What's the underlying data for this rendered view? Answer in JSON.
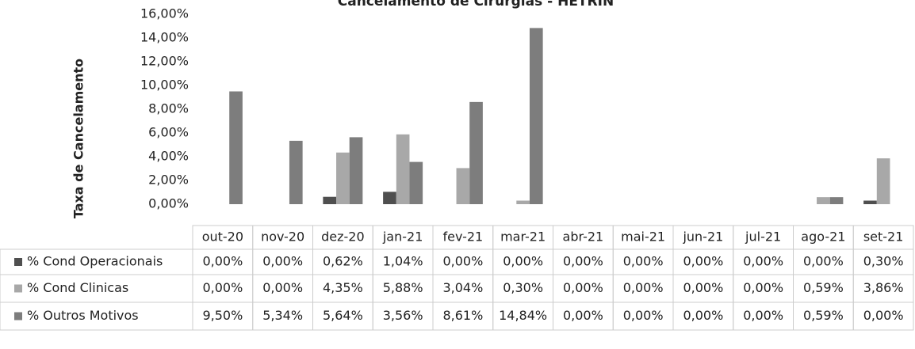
{
  "chart_data": {
    "type": "bar",
    "title": "Cancelamento de Cirurgias - HETRIN",
    "y_label": "Taxa de Cancelamento",
    "categories": [
      "out-20",
      "nov-20",
      "dez-20",
      "jan-21",
      "fev-21",
      "mar-21",
      "abr-21",
      "mai-21",
      "jun-21",
      "jul-21",
      "ago-21",
      "set-21"
    ],
    "series": [
      {
        "name": "% Cond Operacionais",
        "color": "#4f4f4f",
        "values": [
          0,
          0,
          0.62,
          1.04,
          0,
          0,
          0,
          0,
          0,
          0,
          0,
          0.3
        ],
        "value_labels": [
          "0,00%",
          "0,00%",
          "0,62%",
          "1,04%",
          "0,00%",
          "0,00%",
          "0,00%",
          "0,00%",
          "0,00%",
          "0,00%",
          "0,00%",
          "0,30%"
        ]
      },
      {
        "name": "% Cond Clinicas",
        "color": "#a8a8a8",
        "values": [
          0,
          0,
          4.35,
          5.88,
          3.04,
          0.3,
          0,
          0,
          0,
          0,
          0.59,
          3.86
        ],
        "value_labels": [
          "0,00%",
          "0,00%",
          "4,35%",
          "5,88%",
          "3,04%",
          "0,30%",
          "0,00%",
          "0,00%",
          "0,00%",
          "0,00%",
          "0,59%",
          "3,86%"
        ]
      },
      {
        "name": "% Outros Motivos",
        "color": "#7d7d7d",
        "values": [
          9.5,
          5.34,
          5.64,
          3.56,
          8.61,
          14.84,
          0,
          0,
          0,
          0,
          0.59,
          0.0
        ],
        "value_labels": [
          "9,50%",
          "5,34%",
          "5,64%",
          "3,56%",
          "8,61%",
          "14,84%",
          "0,00%",
          "0,00%",
          "0,00%",
          "0,00%",
          "0,59%",
          "0,00%"
        ]
      }
    ],
    "ylim": [
      0,
      16
    ],
    "yticks": [
      {
        "value": 0,
        "label": "0,00%"
      },
      {
        "value": 2,
        "label": "2,00%"
      },
      {
        "value": 4,
        "label": "4,00%"
      },
      {
        "value": 6,
        "label": "6,00%"
      },
      {
        "value": 8,
        "label": "8,00%"
      },
      {
        "value": 10,
        "label": "10,00%"
      },
      {
        "value": 12,
        "label": "12,00%"
      },
      {
        "value": 14,
        "label": "14,00%"
      },
      {
        "value": 16,
        "label": "16,00%"
      }
    ]
  }
}
